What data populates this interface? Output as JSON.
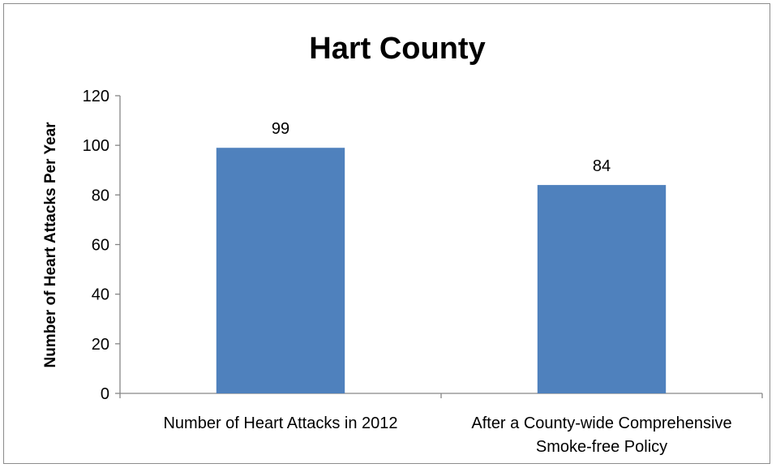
{
  "chart_data": {
    "type": "bar",
    "title": "Hart County",
    "xlabel": "",
    "ylabel": "Number of Heart Attacks Per Year",
    "categories": [
      [
        "Number of Heart Attacks in 2012"
      ],
      [
        "After a County-wide Comprehensive",
        "Smoke-free Policy"
      ]
    ],
    "values": [
      99,
      84
    ],
    "data_labels": [
      "99",
      "84"
    ],
    "ylim": [
      0,
      120
    ],
    "yticks": [
      0,
      20,
      40,
      60,
      80,
      100,
      120
    ],
    "grid": false,
    "legend": "none",
    "bar_color": "#4f81bd"
  }
}
